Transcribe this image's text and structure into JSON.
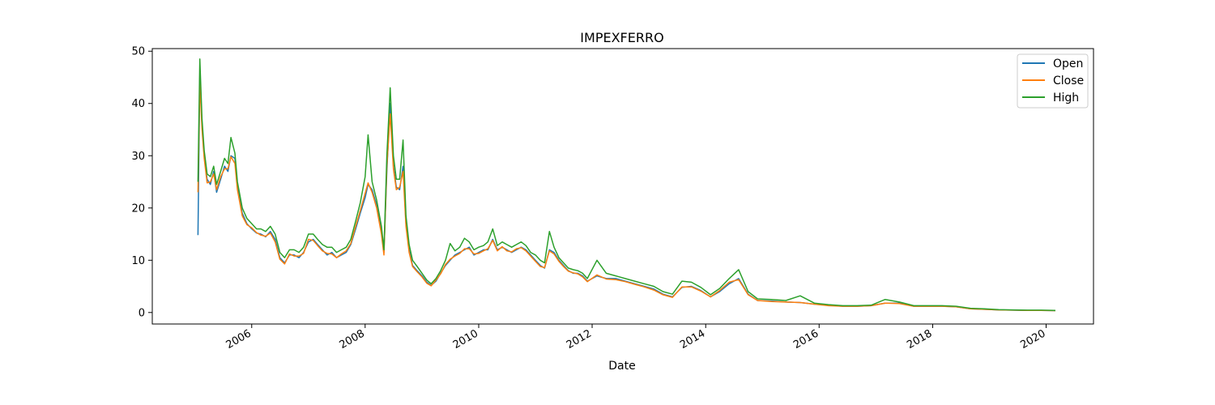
{
  "chart_data": {
    "type": "line",
    "title": "IMPEXFERRO",
    "xlabel": "Date",
    "ylabel": "",
    "xlim": [
      "2004-04-01",
      "2020-11-01"
    ],
    "ylim": [
      -2.2,
      50.5
    ],
    "x_ticks": [
      "2006",
      "2008",
      "2010",
      "2012",
      "2014",
      "2016",
      "2018",
      "2020"
    ],
    "y_ticks": [
      0,
      10,
      20,
      30,
      40,
      50
    ],
    "legend": {
      "position": "top-right"
    },
    "grid": false,
    "colors": {
      "Open": "#1f77b4",
      "Close": "#ff7f0e",
      "High": "#2ca02c"
    },
    "x": [
      "2005-01-20",
      "2005-02-01",
      "2005-02-15",
      "2005-03-01",
      "2005-03-20",
      "2005-04-10",
      "2005-05-01",
      "2005-05-20",
      "2005-06-15",
      "2005-07-10",
      "2005-08-01",
      "2005-08-20",
      "2005-09-15",
      "2005-10-01",
      "2005-11-01",
      "2005-12-01",
      "2006-01-01",
      "2006-02-01",
      "2006-03-01",
      "2006-04-01",
      "2006-05-01",
      "2006-06-01",
      "2006-07-01",
      "2006-08-01",
      "2006-09-01",
      "2006-10-01",
      "2006-11-01",
      "2006-12-01",
      "2007-01-01",
      "2007-02-01",
      "2007-03-01",
      "2007-04-01",
      "2007-05-01",
      "2007-06-01",
      "2007-07-01",
      "2007-08-01",
      "2007-09-01",
      "2007-10-01",
      "2007-11-01",
      "2007-12-01",
      "2008-01-01",
      "2008-01-20",
      "2008-02-15",
      "2008-03-15",
      "2008-04-15",
      "2008-05-01",
      "2008-05-20",
      "2008-06-10",
      "2008-07-01",
      "2008-07-20",
      "2008-08-10",
      "2008-09-01",
      "2008-09-20",
      "2008-10-10",
      "2008-11-01",
      "2008-12-01",
      "2009-01-01",
      "2009-02-01",
      "2009-03-01",
      "2009-04-01",
      "2009-05-01",
      "2009-06-01",
      "2009-07-01",
      "2009-08-01",
      "2009-09-01",
      "2009-10-01",
      "2009-11-01",
      "2009-12-01",
      "2010-01-01",
      "2010-02-01",
      "2010-03-01",
      "2010-04-01",
      "2010-05-01",
      "2010-06-01",
      "2010-07-01",
      "2010-08-01",
      "2010-09-01",
      "2010-10-01",
      "2010-11-01",
      "2010-12-01",
      "2011-01-01",
      "2011-02-01",
      "2011-03-01",
      "2011-04-01",
      "2011-05-01",
      "2011-06-01",
      "2011-07-01",
      "2011-08-01",
      "2011-09-01",
      "2011-10-01",
      "2011-11-01",
      "2011-12-01",
      "2012-02-01",
      "2012-04-01",
      "2012-06-01",
      "2012-08-01",
      "2012-10-01",
      "2012-12-01",
      "2013-02-01",
      "2013-04-01",
      "2013-06-01",
      "2013-08-01",
      "2013-10-01",
      "2013-12-01",
      "2014-02-01",
      "2014-04-01",
      "2014-06-01",
      "2014-08-01",
      "2014-10-01",
      "2014-12-01",
      "2015-03-01",
      "2015-06-01",
      "2015-09-01",
      "2015-12-01",
      "2016-03-01",
      "2016-06-01",
      "2016-09-01",
      "2016-12-01",
      "2017-03-01",
      "2017-06-01",
      "2017-09-01",
      "2017-12-01",
      "2018-03-01",
      "2018-06-01",
      "2018-09-01",
      "2018-12-01",
      "2019-03-01",
      "2019-06-01",
      "2019-09-01",
      "2019-12-01",
      "2020-03-01"
    ],
    "series": [
      {
        "name": "Open",
        "values": [
          14.8,
          45.0,
          36.0,
          30.0,
          25.5,
          24.5,
          27.0,
          23.0,
          25.5,
          28.0,
          27.0,
          30.0,
          29.5,
          24.0,
          19.0,
          17.0,
          16.0,
          15.2,
          15.0,
          14.5,
          15.5,
          14.0,
          10.5,
          9.5,
          11.0,
          11.0,
          10.5,
          11.5,
          13.5,
          14.0,
          13.0,
          12.0,
          11.0,
          11.5,
          10.5,
          11.0,
          11.5,
          13.0,
          16.0,
          19.0,
          22.0,
          24.5,
          23.5,
          20.5,
          15.5,
          11.5,
          27.0,
          40.0,
          28.0,
          24.0,
          23.5,
          28.0,
          17.0,
          12.0,
          9.0,
          8.0,
          7.0,
          5.8,
          5.2,
          6.0,
          7.5,
          9.0,
          10.0,
          11.0,
          11.5,
          12.0,
          12.5,
          11.0,
          11.5,
          12.0,
          12.0,
          14.0,
          12.0,
          12.5,
          12.0,
          11.5,
          12.0,
          12.5,
          12.0,
          11.0,
          10.0,
          9.0,
          8.5,
          12.0,
          11.5,
          10.0,
          9.0,
          8.0,
          7.5,
          7.5,
          7.0,
          6.0,
          7.0,
          6.5,
          6.5,
          6.0,
          5.5,
          5.0,
          4.5,
          3.5,
          3.0,
          4.8,
          5.0,
          4.2,
          3.0,
          4.0,
          5.5,
          6.5,
          3.5,
          2.3,
          2.2,
          2.0,
          1.9,
          1.6,
          1.4,
          1.2,
          1.2,
          1.3,
          1.8,
          1.8,
          1.2,
          1.2,
          1.2,
          1.1,
          0.7,
          0.6,
          0.5,
          0.45,
          0.4,
          0.4,
          0.35
        ]
      },
      {
        "name": "Close",
        "values": [
          23.0,
          44.0,
          35.0,
          29.5,
          24.8,
          25.0,
          26.5,
          23.5,
          26.0,
          27.5,
          27.5,
          29.8,
          28.5,
          23.5,
          18.5,
          16.8,
          16.2,
          15.3,
          14.8,
          14.6,
          15.2,
          13.5,
          10.2,
          9.3,
          11.2,
          10.8,
          10.8,
          11.3,
          14.0,
          13.8,
          12.8,
          11.8,
          11.3,
          11.2,
          10.5,
          11.2,
          11.8,
          13.2,
          16.5,
          19.5,
          22.8,
          24.8,
          23.0,
          20.0,
          15.0,
          11.0,
          28.0,
          38.0,
          27.5,
          23.5,
          24.0,
          27.0,
          16.5,
          11.5,
          8.8,
          7.8,
          6.8,
          5.6,
          5.1,
          6.2,
          7.4,
          9.2,
          10.2,
          10.8,
          11.3,
          12.2,
          12.2,
          11.2,
          11.3,
          11.8,
          12.2,
          13.8,
          11.8,
          12.6,
          11.8,
          11.6,
          12.2,
          12.4,
          11.8,
          10.8,
          9.8,
          8.8,
          8.6,
          11.8,
          11.2,
          9.8,
          8.8,
          7.9,
          7.6,
          7.4,
          6.8,
          5.9,
          7.2,
          6.4,
          6.3,
          5.9,
          5.4,
          4.9,
          4.3,
          3.4,
          2.9,
          4.9,
          4.9,
          4.1,
          3.0,
          4.2,
          5.8,
          6.3,
          3.4,
          2.3,
          2.1,
          2.0,
          1.9,
          1.6,
          1.3,
          1.2,
          1.2,
          1.3,
          1.8,
          1.7,
          1.2,
          1.2,
          1.2,
          1.1,
          0.7,
          0.6,
          0.5,
          0.45,
          0.4,
          0.4,
          0.35
        ]
      },
      {
        "name": "High",
        "values": [
          25.0,
          48.5,
          37.0,
          31.0,
          26.5,
          26.0,
          28.0,
          24.5,
          27.0,
          29.5,
          28.5,
          33.5,
          30.5,
          25.0,
          20.0,
          18.0,
          17.0,
          16.0,
          16.0,
          15.5,
          16.5,
          15.0,
          11.5,
          10.5,
          12.0,
          12.0,
          11.5,
          12.5,
          15.0,
          15.0,
          14.0,
          13.0,
          12.5,
          12.5,
          11.5,
          12.0,
          12.5,
          14.0,
          17.5,
          21.0,
          26.0,
          34.0,
          25.0,
          21.5,
          16.5,
          12.0,
          30.0,
          43.0,
          30.0,
          25.5,
          25.5,
          33.0,
          18.5,
          13.0,
          10.0,
          8.8,
          7.5,
          6.2,
          5.5,
          6.5,
          8.0,
          10.0,
          13.2,
          11.8,
          12.5,
          14.2,
          13.5,
          12.0,
          12.5,
          12.8,
          13.5,
          16.0,
          12.8,
          13.5,
          13.0,
          12.5,
          13.0,
          13.5,
          12.8,
          11.5,
          11.0,
          10.0,
          9.5,
          15.5,
          12.5,
          10.5,
          9.5,
          8.5,
          8.2,
          8.0,
          7.5,
          6.5,
          10.0,
          7.5,
          7.0,
          6.5,
          6.0,
          5.5,
          5.0,
          4.0,
          3.5,
          6.0,
          5.8,
          4.8,
          3.4,
          4.6,
          6.5,
          8.2,
          4.0,
          2.6,
          2.5,
          2.3,
          3.2,
          1.8,
          1.5,
          1.3,
          1.3,
          1.4,
          2.5,
          2.0,
          1.3,
          1.3,
          1.3,
          1.2,
          0.8,
          0.7,
          0.55,
          0.5,
          0.45,
          0.45,
          0.4
        ]
      }
    ]
  }
}
